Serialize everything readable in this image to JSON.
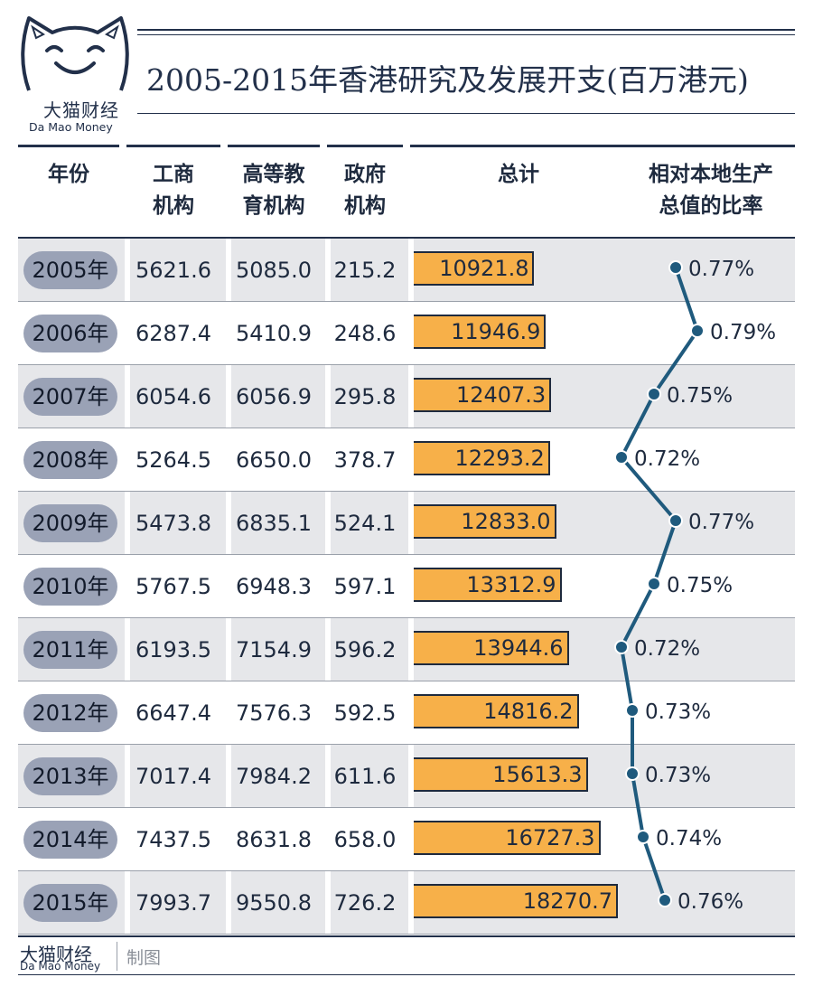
{
  "brand": {
    "name_cn": "大猫财经",
    "name_en": "Da Mao Money"
  },
  "title": "2005-2015年香港研究及发展开支(百万港元)",
  "headers": [
    [
      "年份"
    ],
    [
      "工商",
      "机构"
    ],
    [
      "高等教",
      "育机构"
    ],
    [
      "政府",
      "机构"
    ],
    [
      "总计"
    ],
    [
      "相对本地生产",
      "总值的比率"
    ]
  ],
  "footer": {
    "brand_cn": "大猫财经",
    "brand_en": "Da Mao Money",
    "credit": "制图"
  },
  "colors": {
    "navy": "#22304a",
    "bar": "#f7b049",
    "pill": "#9aa2b6",
    "line": "#1f5a7d",
    "shade": "#e6e7ea"
  },
  "chart_data": {
    "type": "table",
    "title": "2005-2015年香港研究及发展开支(百万港元)",
    "columns": [
      "年份",
      "工商机构",
      "高等教育机构",
      "政府机构",
      "总计",
      "相对本地生产总值的比率"
    ],
    "rows": [
      {
        "year": "2005年",
        "business": "5621.6",
        "higher_ed": "5085.0",
        "government": "215.2",
        "total": "10921.8",
        "ratio": 0.77,
        "ratio_label": "0.77%"
      },
      {
        "year": "2006年",
        "business": "6287.4",
        "higher_ed": "5410.9",
        "government": "248.6",
        "total": "11946.9",
        "ratio": 0.79,
        "ratio_label": "0.79%"
      },
      {
        "year": "2007年",
        "business": "6054.6",
        "higher_ed": "6056.9",
        "government": "295.8",
        "total": "12407.3",
        "ratio": 0.75,
        "ratio_label": "0.75%"
      },
      {
        "year": "2008年",
        "business": "5264.5",
        "higher_ed": "6650.0",
        "government": "378.7",
        "total": "12293.2",
        "ratio": 0.72,
        "ratio_label": "0.72%"
      },
      {
        "year": "2009年",
        "business": "5473.8",
        "higher_ed": "6835.1",
        "government": "524.1",
        "total": "12833.0",
        "ratio": 0.77,
        "ratio_label": "0.77%"
      },
      {
        "year": "2010年",
        "business": "5767.5",
        "higher_ed": "6948.3",
        "government": "597.1",
        "total": "13312.9",
        "ratio": 0.75,
        "ratio_label": "0.75%"
      },
      {
        "year": "2011年",
        "business": "6193.5",
        "higher_ed": "7154.9",
        "government": "596.2",
        "total": "13944.6",
        "ratio": 0.72,
        "ratio_label": "0.72%"
      },
      {
        "year": "2012年",
        "business": "6647.4",
        "higher_ed": "7576.3",
        "government": "592.5",
        "total": "14816.2",
        "ratio": 0.73,
        "ratio_label": "0.73%"
      },
      {
        "year": "2013年",
        "business": "7017.4",
        "higher_ed": "7984.2",
        "government": "611.6",
        "total": "15613.3",
        "ratio": 0.73,
        "ratio_label": "0.73%"
      },
      {
        "year": "2014年",
        "business": "7437.5",
        "higher_ed": "8631.8",
        "government": "658.0",
        "total": "16727.3",
        "ratio": 0.74,
        "ratio_label": "0.74%"
      },
      {
        "year": "2015年",
        "business": "7993.7",
        "higher_ed": "9550.8",
        "government": "726.2",
        "total": "18270.7",
        "ratio": 0.76,
        "ratio_label": "0.76%"
      }
    ]
  }
}
